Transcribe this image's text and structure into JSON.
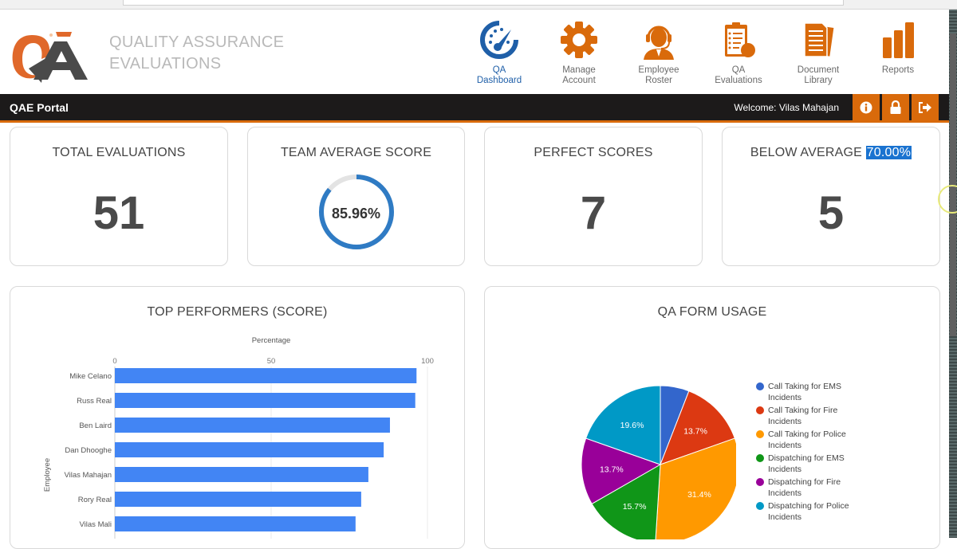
{
  "app": {
    "brand_line1": "QUALITY ASSURANCE",
    "brand_line2": "EVALUATIONS",
    "logo_text": "QA"
  },
  "nav": {
    "items": [
      {
        "label_line1": "QA",
        "label_line2": "Dashboard",
        "icon": "speedometer-icon",
        "active": true
      },
      {
        "label_line1": "Manage",
        "label_line2": "Account",
        "icon": "gear-icon",
        "active": false
      },
      {
        "label_line1": "Employee",
        "label_line2": "Roster",
        "icon": "headset-agent-icon",
        "active": false
      },
      {
        "label_line1": "QA",
        "label_line2": "Evaluations",
        "icon": "clipboard-checklist-icon",
        "active": false
      },
      {
        "label_line1": "Document",
        "label_line2": "Library",
        "icon": "documents-icon",
        "active": false
      },
      {
        "label_line1": "Reports",
        "label_line2": "",
        "icon": "bar-chart-icon",
        "active": false
      }
    ]
  },
  "topbar": {
    "title": "QAE Portal",
    "welcome": "Welcome: Vilas Mahajan",
    "buttons": [
      "info-icon",
      "lock-icon",
      "logout-icon"
    ]
  },
  "stats": {
    "total_evaluations": {
      "title": "TOTAL EVALUATIONS",
      "value": "51"
    },
    "team_average": {
      "title": "TEAM AVERAGE SCORE",
      "value": "85.96%",
      "percent": 85.96
    },
    "perfect_scores": {
      "title": "PERFECT SCORES",
      "value": "7"
    },
    "below_average": {
      "title": "BELOW AVERAGE",
      "threshold": "70.00%",
      "value": "5"
    }
  },
  "colors": {
    "accent": "#d96a0b",
    "dark_bar": "#1c1a1a",
    "active_nav": "#1f5fa8",
    "bar_blue": "#4285f4",
    "donut_blue": "#2f7bc4"
  },
  "chart_data": [
    {
      "type": "bar",
      "orientation": "horizontal",
      "title": "TOP PERFORMERS (SCORE)",
      "xlabel": "Percentage",
      "ylabel": "Employee",
      "xlim": [
        0,
        100
      ],
      "x_ticks": [
        "0",
        "50",
        "100"
      ],
      "grid": true,
      "categories": [
        "Mike Celano",
        "Russ Real",
        "Ben Laird",
        "Dan Dhooghe",
        "Vilas Mahajan",
        "Rory Real",
        "Vilas Mali"
      ],
      "values": [
        96.5,
        96.1,
        88.0,
        86.0,
        81.1,
        78.8,
        77.0
      ],
      "color": "#4285f4"
    },
    {
      "type": "pie",
      "title": "QA FORM USAGE",
      "legend_position": "right",
      "categories": [
        "Call Taking for EMS Incidents",
        "Call Taking for Fire Incidents",
        "Call Taking for Police Incidents",
        "Dispatching for EMS Incidents",
        "Dispatching for Fire Incidents",
        "Dispatching for Police Incidents"
      ],
      "values": [
        5.9,
        13.7,
        31.4,
        15.7,
        13.7,
        19.6
      ],
      "labels": [
        "",
        "13.7%",
        "31.4%",
        "15.7%",
        "13.7%",
        "19.6%"
      ],
      "colors": [
        "#3366cc",
        "#dc3912",
        "#ff9900",
        "#109618",
        "#990099",
        "#0099c6"
      ]
    }
  ]
}
